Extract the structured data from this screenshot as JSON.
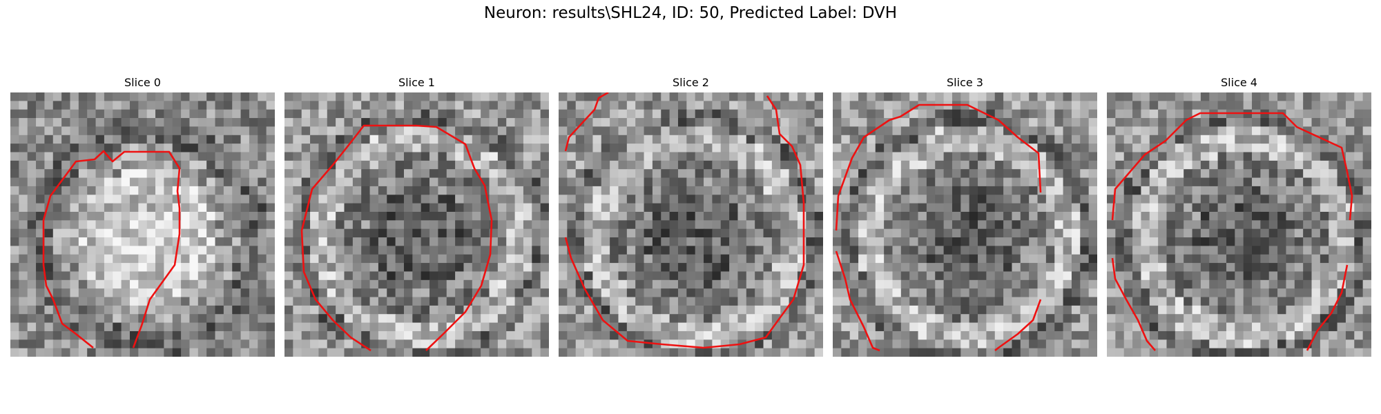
{
  "figure": {
    "title": "Neuron: results\\SHL24, ID: 50, Predicted Label: DVH"
  },
  "panels": [
    {
      "title": "Slice 0",
      "seed": 11,
      "bright_center": true
    },
    {
      "title": "Slice 1",
      "seed": 23,
      "bright_center": false
    },
    {
      "title": "Slice 2",
      "seed": 37,
      "bright_center": false
    },
    {
      "title": "Slice 3",
      "seed": 41,
      "bright_center": false
    },
    {
      "title": "Slice 4",
      "seed": 53,
      "bright_center": false
    }
  ],
  "colors": {
    "contour": "#ee1111",
    "background": "#ffffff"
  }
}
